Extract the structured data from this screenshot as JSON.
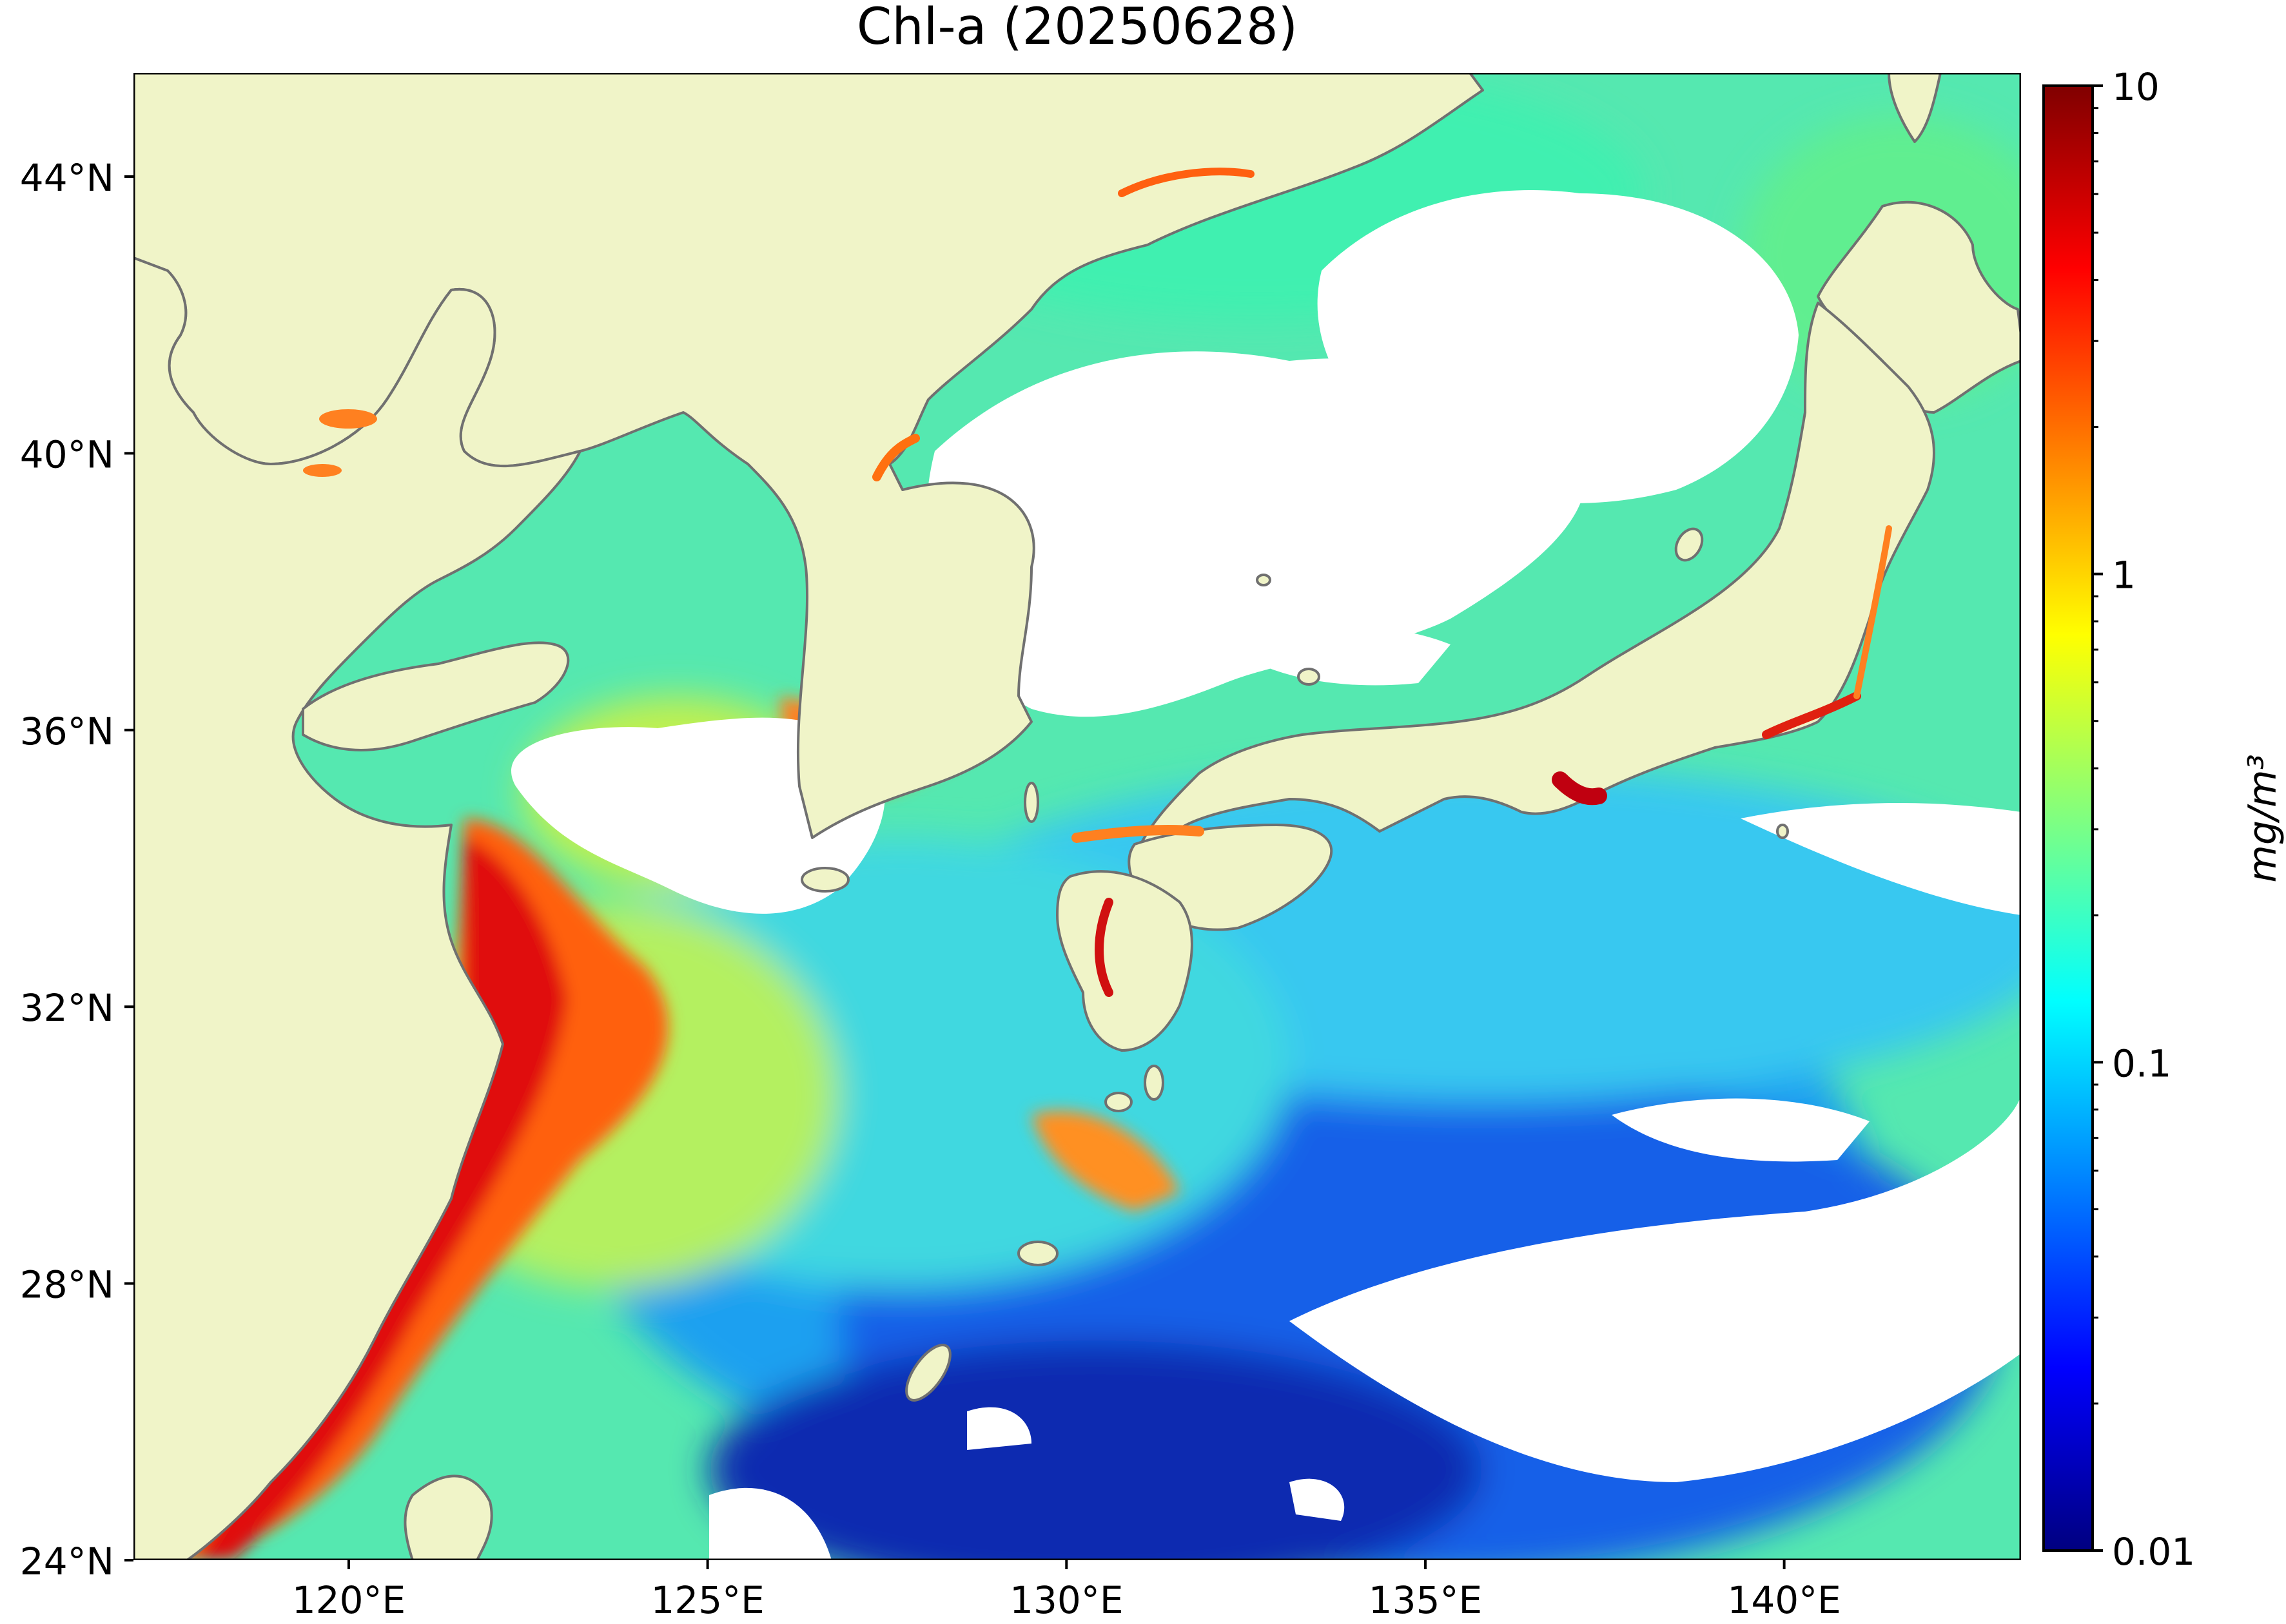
{
  "title": "Chl-a (20250628)",
  "map": {
    "lat_range": [
      24,
      45.5
    ],
    "lon_range": [
      117,
      143.3
    ],
    "lat_ticks": [
      24,
      28,
      32,
      36,
      40,
      44
    ],
    "lon_ticks": [
      120,
      125,
      130,
      135,
      140
    ],
    "lat_labels": [
      "24°N",
      "28°N",
      "32°N",
      "36°N",
      "40°N",
      "44°N"
    ],
    "lon_labels": [
      "120°E",
      "125°E",
      "130°E",
      "135°E",
      "140°E"
    ],
    "land_color": "#f0f4c8",
    "coast_color": "#707070",
    "no_data_color": "#ffffff"
  },
  "colorbar": {
    "scale": "log",
    "range": [
      0.01,
      10
    ],
    "tick_values": [
      0.01,
      0.1,
      1,
      10
    ],
    "tick_labels": [
      "0.01",
      "0.1",
      "1",
      "10"
    ],
    "colormap": "jet",
    "colormap_stops": [
      "#000080",
      "#0000ff",
      "#0080ff",
      "#00ffff",
      "#80ff80",
      "#ffff00",
      "#ff8000",
      "#ff0000",
      "#800000"
    ],
    "label": "mg/m³"
  }
}
